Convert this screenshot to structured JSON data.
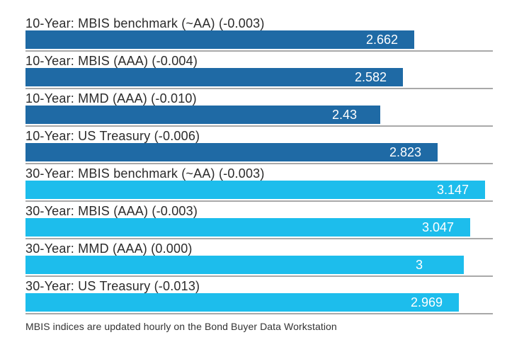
{
  "chart_data": {
    "type": "bar",
    "orientation": "horizontal",
    "title": "",
    "xlabel": "",
    "ylabel": "",
    "xlim": [
      0,
      3.2
    ],
    "grid": false,
    "legend": "none",
    "bars": [
      {
        "label": "10-Year: MBIS benchmark (~AA) (-0.003)",
        "value": 2.662,
        "display_value": "2.662",
        "series": "10-year",
        "change": "-0.003"
      },
      {
        "label": "10-Year: MBIS (AAA) (-0.004)",
        "value": 2.582,
        "display_value": "2.582",
        "series": "10-year",
        "change": "-0.004"
      },
      {
        "label": "10-Year: MMD (AAA) (-0.010)",
        "value": 2.43,
        "display_value": "2.43",
        "series": "10-year",
        "change": "-0.010"
      },
      {
        "label": "10-Year: US Treasury (-0.006)",
        "value": 2.823,
        "display_value": "2.823",
        "series": "10-year",
        "change": "-0.006"
      },
      {
        "label": "30-Year: MBIS benchmark (~AA) (-0.003)",
        "value": 3.147,
        "display_value": "3.147",
        "series": "30-year",
        "change": "-0.003"
      },
      {
        "label": "30-Year: MBIS (AAA) (-0.003)",
        "value": 3.047,
        "display_value": "3.047",
        "series": "30-year",
        "change": "-0.003"
      },
      {
        "label": "30-Year: MMD (AAA) (0.000)",
        "value": 3,
        "display_value": "3",
        "series": "30-year",
        "change": "0.000"
      },
      {
        "label": "30-Year: US Treasury (-0.013)",
        "value": 2.969,
        "display_value": "2.969",
        "series": "30-year",
        "change": "-0.013"
      }
    ],
    "series_colors": {
      "10-year": "#1f6aa5",
      "30-year": "#1dbdec"
    },
    "separator_color": "#a9a9a9",
    "label_text_color": "#2b2b2b",
    "value_text_color": "#ffffff",
    "footnote": "MBIS indices are updated hourly on the Bond Buyer Data Workstation"
  }
}
